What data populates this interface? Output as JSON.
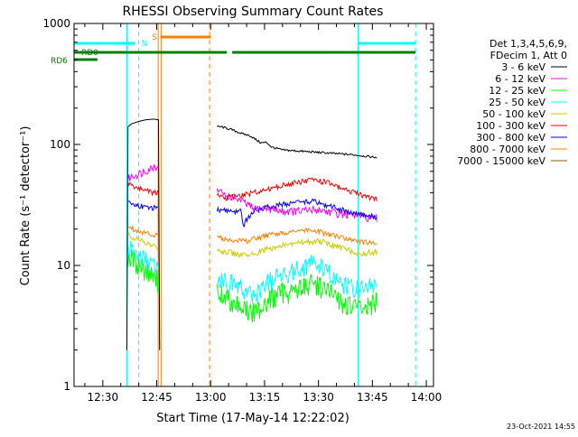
{
  "chart_data": {
    "type": "line",
    "title": "RHESSI Observing Summary Count Rates",
    "xlabel": "Start Time (17-May-14 12:22:02)",
    "ylabel": "Count Rate (s⁻¹ detector⁻¹)",
    "x_unit": "minutes since 12:00",
    "xlim": [
      22.0,
      122.0
    ],
    "ylim": [
      1,
      1000
    ],
    "yscale": "log",
    "x_ticks": [
      {
        "value": 30,
        "label": "12:30"
      },
      {
        "value": 45,
        "label": "12:45"
      },
      {
        "value": 60,
        "label": "13:00"
      },
      {
        "value": 75,
        "label": "13:15"
      },
      {
        "value": 90,
        "label": "13:30"
      },
      {
        "value": 105,
        "label": "13:45"
      },
      {
        "value": 120,
        "label": "14:00"
      }
    ],
    "y_ticks": [
      {
        "value": 1,
        "label": "1"
      },
      {
        "value": 10,
        "label": "10"
      },
      {
        "value": 100,
        "label": "100"
      },
      {
        "value": 1000,
        "label": "1000"
      }
    ],
    "legend_header": [
      "Det 1,3,4,5,6,9,",
      "FDecim 1, Att 0"
    ],
    "legend_placement": "right",
    "series": [
      {
        "name": "3 - 6 keV",
        "color": "#000000",
        "segments": [
          {
            "x": [
              36.7,
              37.0,
              38.0,
              40.0,
              42.0,
              44.0,
              45.5,
              45.8
            ],
            "y": [
              2,
              140,
              148,
              155,
              160,
              162,
              160,
              2
            ]
          },
          {
            "x": [
              61.8,
              63.0,
              66.0,
              69.0,
              71.0,
              72.5,
              74.0,
              75.5,
              77.0,
              80.0,
              85.0,
              90.0,
              95.0,
              100.0,
              103.0,
              106.5
            ],
            "y": [
              140,
              140,
              132,
              122,
              118,
              110,
              103,
              104,
              95,
              90,
              88,
              86,
              84,
              82,
              80,
              78
            ]
          }
        ]
      },
      {
        "name": "6 - 12 keV",
        "color": "#ff00ff",
        "segments": [
          {
            "x": [
              37.0,
              38.5,
              40.5,
              42.5,
              44.0,
              45.5
            ],
            "y": [
              52,
              55,
              58,
              62,
              65,
              68
            ]
          },
          {
            "x": [
              61.8,
              64.0,
              67.0,
              70.0,
              72.0,
              75.0,
              80.0,
              85.0,
              90.0,
              95.0,
              100.0,
              103.0,
              106.5
            ],
            "y": [
              42,
              38,
              36,
              32,
              29,
              30,
              28,
              28,
              29,
              27,
              26,
              25,
              24
            ]
          }
        ]
      },
      {
        "name": "12 - 25 keV",
        "color": "#00ff00",
        "segments": [
          {
            "x": [
              37.0,
              38.5,
              40.5,
              42.5,
              44.0,
              45.5
            ],
            "y": [
              12,
              11,
              10,
              9,
              8,
              7.5
            ]
          },
          {
            "x": [
              61.8,
              64.0,
              67.0,
              70.0,
              72.0,
              75.0,
              80.0,
              85.0,
              88.0,
              90.0,
              93.0,
              96.0,
              100.0,
              103.0,
              106.5
            ],
            "y": [
              6,
              5.5,
              5,
              4.3,
              4,
              5,
              6,
              6.5,
              7,
              7,
              6,
              5,
              4.5,
              4.5,
              5
            ]
          }
        ]
      },
      {
        "name": "25 - 50 keV",
        "color": "#00ffff",
        "segments": [
          {
            "x": [
              37.0,
              38.5,
              40.5,
              42.5,
              44.0,
              45.5
            ],
            "y": [
              14,
              13,
              12,
              11,
              10,
              9
            ]
          },
          {
            "x": [
              61.8,
              64.0,
              67.0,
              70.0,
              72.0,
              75.0,
              80.0,
              85.0,
              88.0,
              90.0,
              93.0,
              96.0,
              100.0,
              103.0,
              106.5
            ],
            "y": [
              8,
              7.5,
              7,
              6,
              5.5,
              7,
              8.5,
              9.5,
              10.5,
              10,
              8.5,
              7,
              6.5,
              6.5,
              7
            ]
          }
        ]
      },
      {
        "name": "50 - 100 keV",
        "color": "#cccc00",
        "segments": [
          {
            "x": [
              37.0,
              38.5,
              40.5,
              42.5,
              44.0,
              45.5
            ],
            "y": [
              18,
              17,
              16,
              15,
              14.5,
              14
            ]
          },
          {
            "x": [
              61.8,
              64.0,
              67.0,
              70.0,
              72.0,
              75.0,
              80.0,
              85.0,
              90.0,
              93.0,
              96.0,
              100.0,
              103.0,
              106.5
            ],
            "y": [
              13.5,
              13,
              12.5,
              12,
              12.5,
              13.5,
              14.5,
              15.5,
              16,
              15,
              14,
              13,
              12.5,
              13
            ]
          }
        ]
      },
      {
        "name": "100 - 300 keV",
        "color": "#ff0000",
        "segments": [
          {
            "x": [
              37.0,
              38.5,
              40.5,
              42.5,
              44.0,
              45.5
            ],
            "y": [
              48,
              45,
              43,
              42,
              40,
              40
            ]
          },
          {
            "x": [
              61.8,
              64.0,
              67.0,
              70.0,
              72.0,
              75.0,
              80.0,
              85.0,
              88.0,
              90.0,
              93.0,
              96.0,
              100.0,
              103.0,
              106.5
            ],
            "y": [
              38,
              36,
              37,
              39,
              40,
              42,
              46,
              49,
              51,
              50,
              48,
              44,
              40,
              37,
              35
            ]
          }
        ]
      },
      {
        "name": "300 - 800 keV",
        "color": "#0000ff",
        "segments": [
          {
            "x": [
              37.0,
              38.5,
              40.5,
              42.5,
              44.0,
              45.5
            ],
            "y": [
              33,
              32,
              31,
              30,
              30,
              29
            ]
          },
          {
            "x": [
              61.8,
              64.0,
              67.0,
              68.5,
              69.0,
              70.0,
              72.0,
              75.0,
              80.0,
              85.0,
              88.0,
              90.0,
              93.0,
              96.0,
              100.0,
              103.0,
              106.5
            ],
            "y": [
              29,
              28.5,
              28,
              28,
              21,
              24,
              28,
              30,
              32,
              33,
              34,
              33,
              31,
              29,
              27,
              26,
              25
            ]
          }
        ]
      },
      {
        "name": "800 - 7000 keV",
        "color": "#ff8000",
        "segments": [
          {
            "x": [
              37.0,
              38.5,
              40.5,
              42.5,
              44.0,
              45.5
            ],
            "y": [
              21,
              20,
              19,
              18.5,
              18,
              17.5
            ]
          },
          {
            "x": [
              61.8,
              64.0,
              67.0,
              70.0,
              72.0,
              75.0,
              80.0,
              85.0,
              90.0,
              93.0,
              96.0,
              100.0,
              103.0,
              106.5
            ],
            "y": [
              17,
              16.5,
              16,
              16,
              16.5,
              17.5,
              18.5,
              19.5,
              19,
              18,
              17,
              16,
              15.5,
              15.5
            ]
          }
        ]
      },
      {
        "name": "7000 - 15000 keV",
        "color": "#806000",
        "segments": []
      }
    ],
    "annotations": [
      {
        "type": "vline",
        "x": 36.7,
        "color": "#00ffff",
        "style": "solid"
      },
      {
        "type": "vline",
        "x": 40.0,
        "color": "#00ffff",
        "style": "dashed"
      },
      {
        "type": "vline",
        "x": 45.4,
        "color": "#ff8000",
        "style": "solid"
      },
      {
        "type": "vline",
        "x": 46.2,
        "color": "#ff8000",
        "style": "solid"
      },
      {
        "type": "vline",
        "x": 59.7,
        "color": "#ff8000",
        "style": "dashed"
      },
      {
        "type": "vline",
        "x": 101.0,
        "color": "#00ffff",
        "style": "solid"
      },
      {
        "type": "vline",
        "x": 117.0,
        "color": "#00ffff",
        "style": "dashed"
      }
    ],
    "flag_labels": [
      {
        "text": "N",
        "color": "#00ffff"
      },
      {
        "text": "S",
        "color": "#ff8000"
      },
      {
        "text": "RD0",
        "color": "#008000"
      },
      {
        "text": "RD6",
        "color": "#008000"
      }
    ],
    "flag_bars": [
      {
        "color": "#00ffff",
        "level": 1,
        "x": [
          22.0,
          39.0
        ]
      },
      {
        "color": "#00ffff",
        "level": 1,
        "x": [
          101.0,
          117.0
        ]
      },
      {
        "color": "#ff8000",
        "level": 2,
        "x": [
          46.0,
          60.0
        ]
      },
      {
        "color": "#008000",
        "level": 3,
        "x": [
          22.0,
          64.5
        ]
      },
      {
        "color": "#008000",
        "level": 3,
        "x": [
          66.0,
          117.0
        ]
      },
      {
        "color": "#008000",
        "level": 4,
        "x": [
          22.0,
          28.5
        ]
      }
    ]
  },
  "footer": {
    "timestamp": "23-Oct-2021 14:55"
  }
}
